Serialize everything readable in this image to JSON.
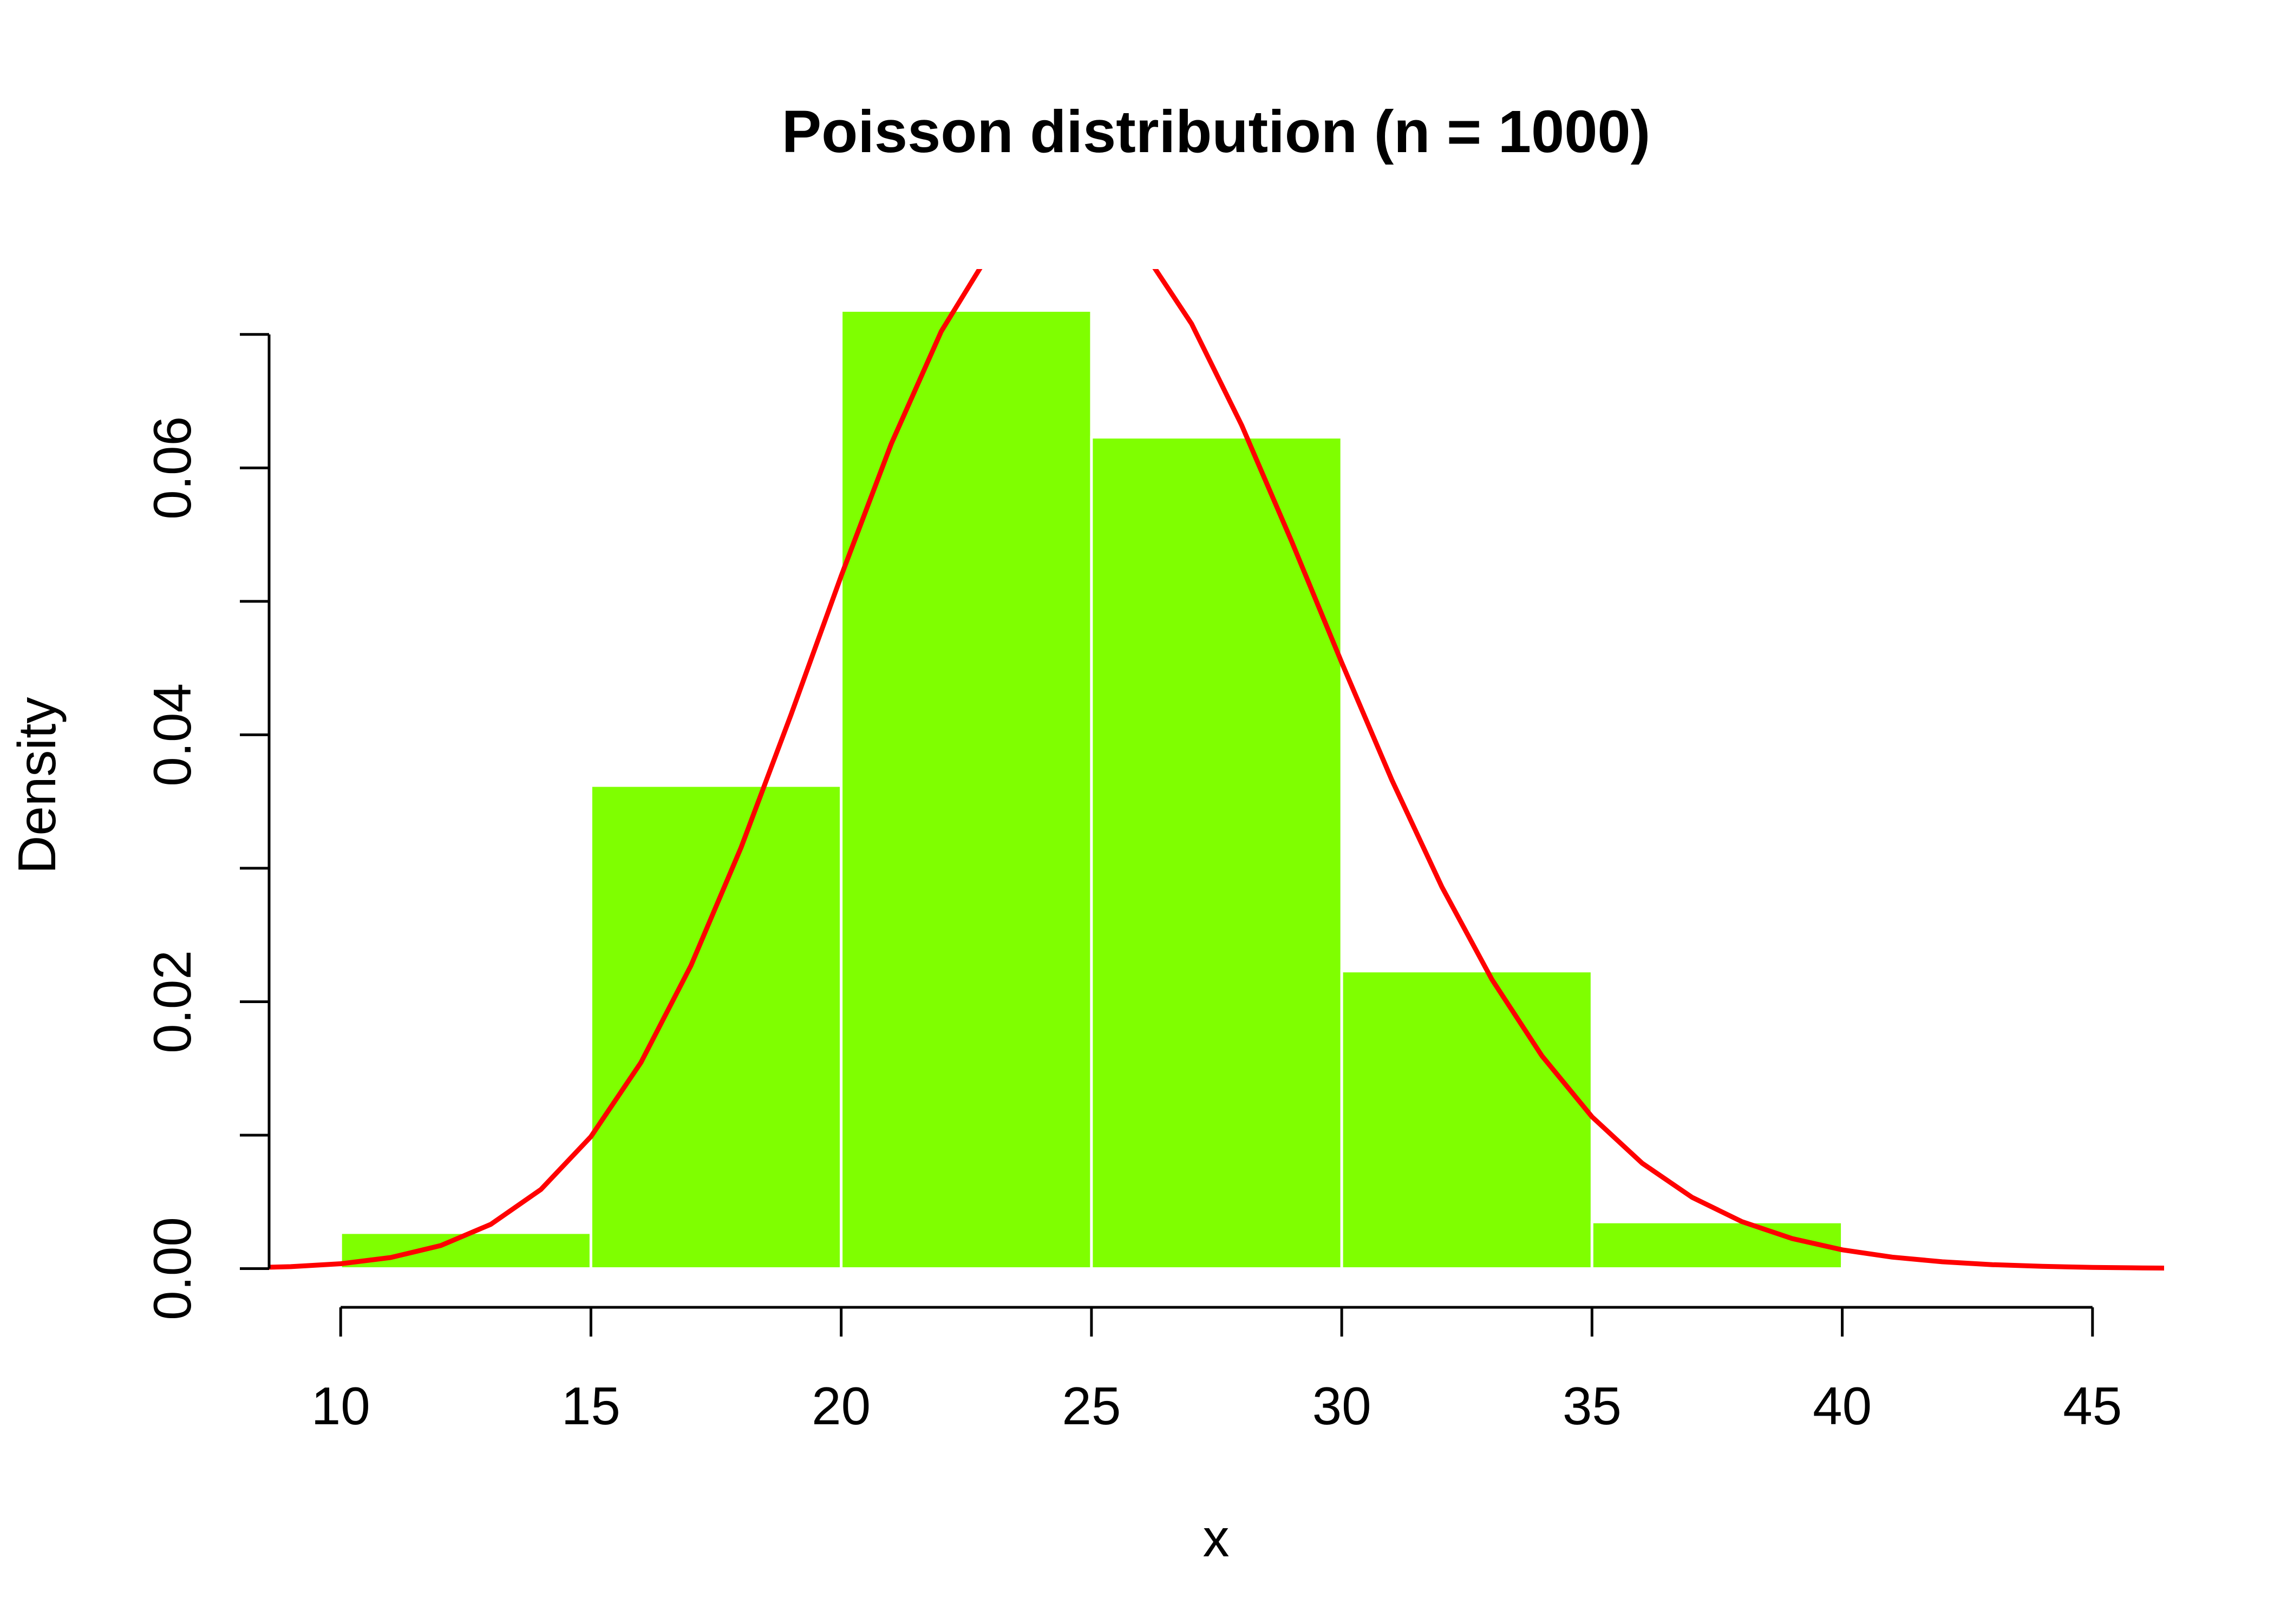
{
  "chart_data": {
    "type": "histogram",
    "title": "Poisson distribution (n = 1000)",
    "xlabel": "x",
    "ylabel": "Density",
    "bins": [
      10,
      15,
      20,
      25,
      30,
      35,
      40,
      45
    ],
    "values": [
      0.0027,
      0.0362,
      0.0718,
      0.0623,
      0.0223,
      0.0035,
      0.0002
    ],
    "color": "#7fff00",
    "edgecolor": "#ffffff",
    "curve": {
      "color": "#ff0000",
      "x": [
        8,
        9,
        10,
        11,
        12,
        13,
        14,
        15,
        16,
        17,
        18,
        19,
        20,
        21,
        22,
        23,
        24,
        25,
        26,
        27,
        28,
        29,
        30,
        31,
        32,
        33,
        34,
        35,
        36,
        37,
        38,
        39,
        40,
        41,
        42,
        43,
        44,
        45,
        46,
        47
      ],
      "values": [
        5.26e-05,
        0.000146,
        0.000365,
        0.00083,
        0.00173,
        0.00332,
        0.00593,
        0.00989,
        0.01545,
        0.02272,
        0.03156,
        0.04153,
        0.05191,
        0.0618,
        0.07023,
        0.07634,
        0.07952,
        0.07952,
        0.07646,
        0.0708,
        0.06321,
        0.05449,
        0.04541,
        0.03662,
        0.02861,
        0.02167,
        0.01594,
        0.01138,
        0.007906,
        0.005342,
        0.003514,
        0.002253,
        0.001408,
        0.000859,
        0.000511,
        0.000297,
        0.000169,
        9.38e-05,
        5.1e-05,
        2.71e-05
      ]
    },
    "xlim": [
      8.57,
      46.43
    ],
    "ylim": [
      -0.0029,
      0.0749
    ],
    "xticks": [
      10,
      15,
      20,
      25,
      30,
      35,
      40,
      45
    ],
    "yticks": [
      {
        "value": 0,
        "label": "0.00"
      },
      {
        "value": 0.02,
        "label": "0.02"
      },
      {
        "value": 0.04,
        "label": "0.04"
      },
      {
        "value": 0.06,
        "label": "0.06"
      }
    ],
    "yminor": [
      0.01,
      0.03,
      0.05,
      0.07
    ]
  }
}
